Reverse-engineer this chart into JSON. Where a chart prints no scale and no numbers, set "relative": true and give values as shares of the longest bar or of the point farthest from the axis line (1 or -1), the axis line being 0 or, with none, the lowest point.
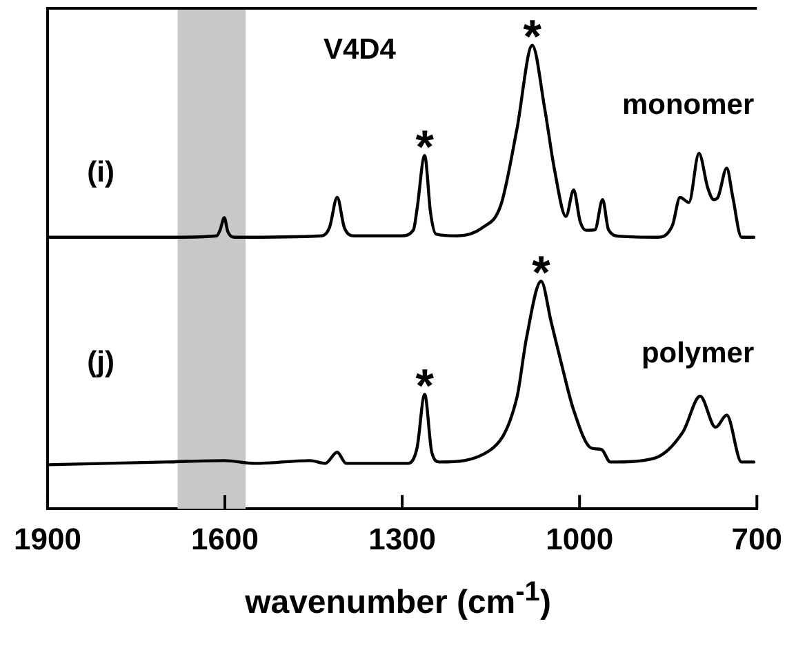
{
  "chart_data": {
    "type": "line",
    "relative": true,
    "xlabel": "wavenumber (cm$^{-1}$)",
    "xlim": [
      1900,
      700
    ],
    "xticks": [
      1900,
      1600,
      1300,
      1000,
      700
    ],
    "grid": false,
    "legend": false,
    "marker": "none",
    "line_style": "solid",
    "bands": [
      {
        "axis": "x",
        "from": 1680,
        "to": 1565,
        "color": "#c8c8c8"
      }
    ],
    "annotations": [
      "V4D4",
      "(i)",
      "(j)",
      {
        "text": "*",
        "x": 1262,
        "y": 0.762
      },
      {
        "text": "*",
        "x": 1080,
        "y": 1.0
      },
      {
        "text": "*",
        "x": 1262,
        "y": 0.247
      },
      {
        "text": "*",
        "x": 1065,
        "y": 0.491
      }
    ],
    "series": [
      {
        "name": "monomer",
        "color": "#000000",
        "x": [
          1900,
          1694,
          1614,
          1608,
          1601,
          1595,
          1584,
          1436,
          1423,
          1410,
          1398,
          1381,
          1302,
          1281,
          1275,
          1262,
          1252,
          1243,
          1207,
          1165,
          1133,
          1106,
          1080,
          1059,
          1042,
          1023,
          1010,
          999,
          989,
          974,
          961,
          951,
          932,
          868,
          843,
          830,
          815,
          798,
          783,
          773,
          766,
          751,
          741,
          726,
          705
        ],
        "values": [
          0.586,
          0.586,
          0.589,
          0.602,
          0.628,
          0.598,
          0.586,
          0.589,
          0.607,
          0.672,
          0.607,
          0.589,
          0.589,
          0.602,
          0.646,
          0.762,
          0.638,
          0.593,
          0.589,
          0.606,
          0.656,
          0.819,
          1.0,
          0.864,
          0.729,
          0.631,
          0.688,
          0.62,
          0.601,
          0.602,
          0.667,
          0.602,
          0.588,
          0.586,
          0.611,
          0.672,
          0.661,
          0.767,
          0.692,
          0.667,
          0.672,
          0.735,
          0.674,
          0.586,
          0.586
        ]
      },
      {
        "name": "polymer",
        "color": "#000000",
        "x": [
          1900,
          1700,
          1601,
          1550,
          1456,
          1430,
          1410,
          1395,
          1290,
          1275,
          1262,
          1250,
          1237,
          1153,
          1106,
          1090,
          1065,
          1048,
          1031,
          1010,
          980,
          963,
          948,
          874,
          825,
          796,
          770,
          751,
          726,
          705
        ],
        "values": [
          0.095,
          0.101,
          0.104,
          0.098,
          0.104,
          0.098,
          0.122,
          0.098,
          0.098,
          0.131,
          0.247,
          0.122,
          0.101,
          0.125,
          0.24,
          0.367,
          0.491,
          0.403,
          0.315,
          0.213,
          0.131,
          0.128,
          0.101,
          0.109,
          0.166,
          0.243,
          0.176,
          0.202,
          0.101,
          0.101
        ]
      }
    ]
  }
}
